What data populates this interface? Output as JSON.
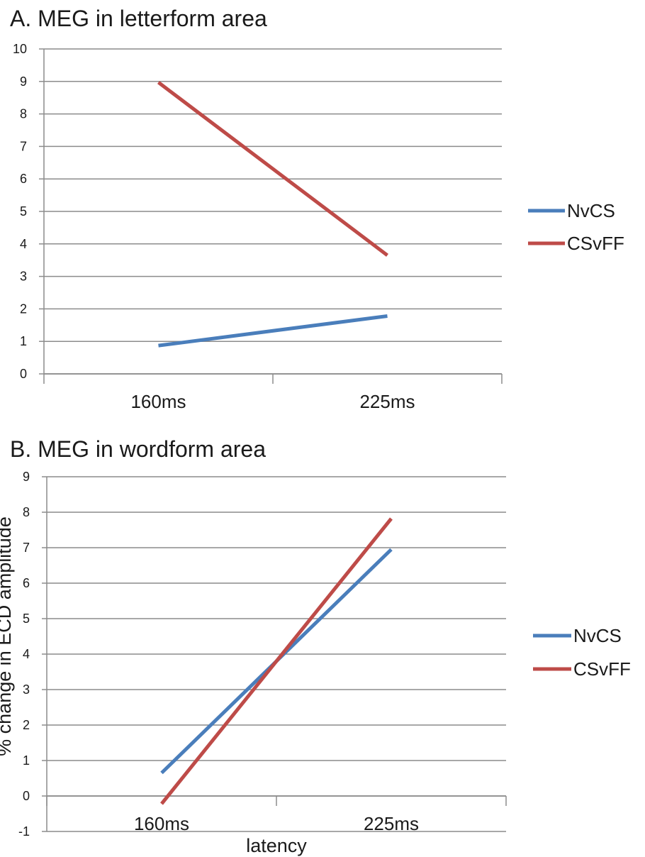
{
  "chart_data": [
    {
      "type": "line",
      "title": "A. MEG in letterform area",
      "categories": [
        "160ms",
        "225ms"
      ],
      "ylim": [
        0,
        10
      ],
      "yticks": [
        0,
        1,
        2,
        3,
        4,
        5,
        6,
        7,
        8,
        9,
        10
      ],
      "grid": true,
      "legend_position": "right",
      "xlabel": "",
      "ylabel": "",
      "series": [
        {
          "name": "NvCS",
          "color": "#4a7ebb",
          "values": [
            0.87,
            1.78
          ]
        },
        {
          "name": "CSvFF",
          "color": "#be4b48",
          "values": [
            8.97,
            3.65
          ]
        }
      ]
    },
    {
      "type": "line",
      "title": "B. MEG in wordform area",
      "categories": [
        "160ms",
        "225ms"
      ],
      "ylim": [
        -1,
        9
      ],
      "yticks": [
        -1,
        0,
        1,
        2,
        3,
        4,
        5,
        6,
        7,
        8,
        9
      ],
      "grid": true,
      "legend_position": "right",
      "xlabel": "latency",
      "ylabel": "% change in ECD amplitude",
      "series": [
        {
          "name": "NvCS",
          "color": "#4a7ebb",
          "values": [
            0.65,
            6.95
          ]
        },
        {
          "name": "CSvFF",
          "color": "#be4b48",
          "values": [
            -0.22,
            7.82
          ]
        }
      ]
    }
  ]
}
